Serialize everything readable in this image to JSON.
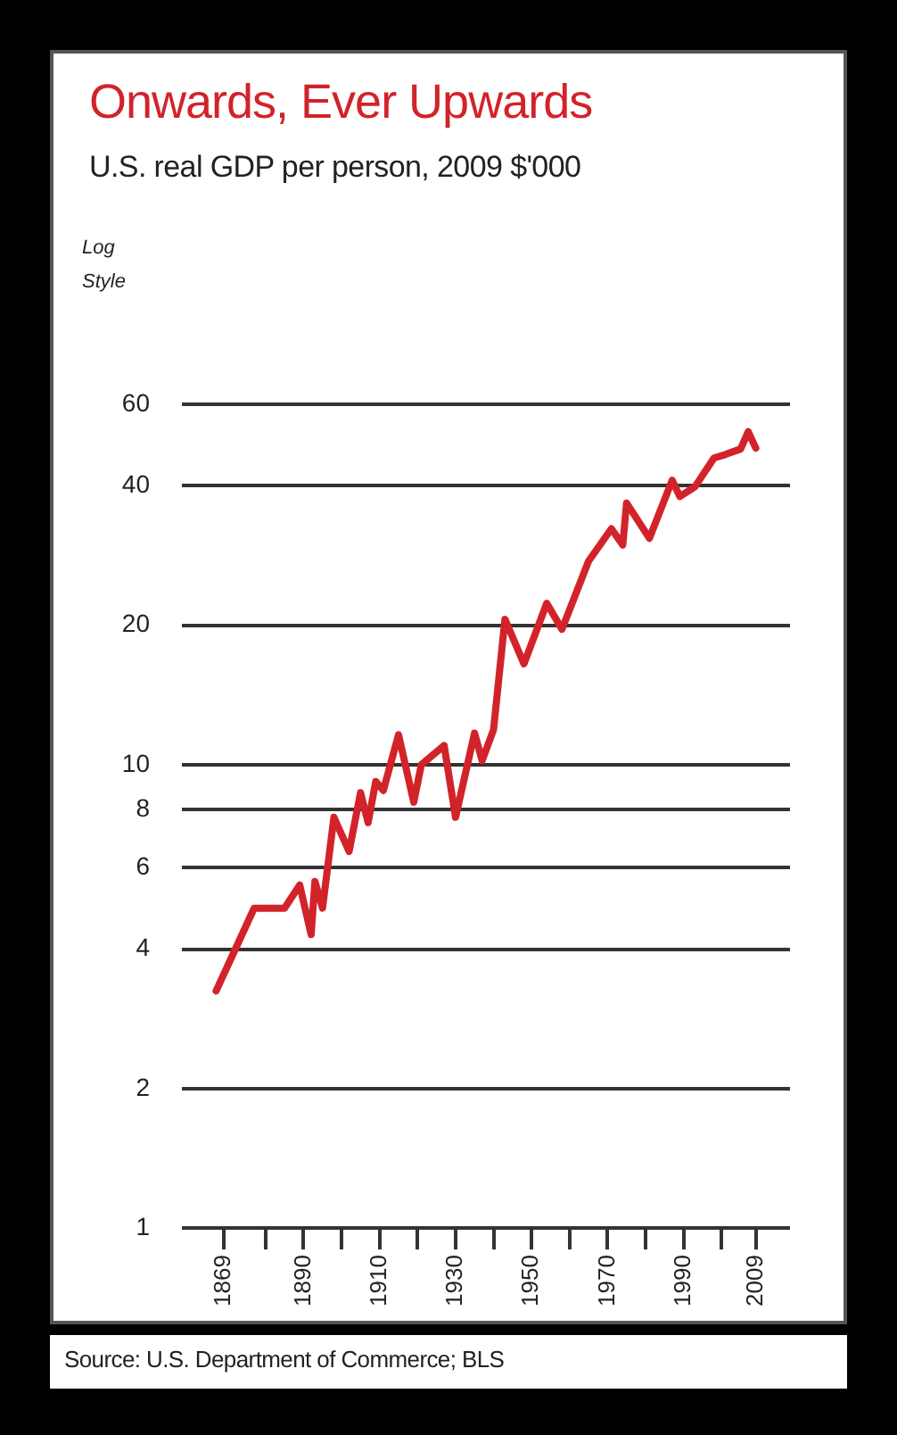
{
  "chart_data": {
    "type": "line",
    "title": "Onwards, Ever Upwards",
    "subtitle": "U.S. real GDP per person, 2009 $'000",
    "ylabel": "Log Style",
    "annotations": [
      "Source: U.S. Department of Commerce; BLS"
    ],
    "log": "y",
    "grid": "y",
    "legend": false,
    "marker": "none",
    "line_style": "solid",
    "xlim": [
      1858,
      2018
    ],
    "xticks": [
      1869,
      {
        "value": 1880,
        "label": null
      },
      1890,
      {
        "value": 1900,
        "label": null
      },
      1910,
      {
        "value": 1920,
        "label": null
      },
      1930,
      {
        "value": 1940,
        "label": null
      },
      1950,
      {
        "value": 1960,
        "label": null
      },
      1970,
      {
        "value": 1980,
        "label": null
      },
      1990,
      {
        "value": 2000,
        "label": null
      },
      2009
    ],
    "ylim": [
      1,
      60
    ],
    "yticks": [
      1,
      2,
      4,
      6,
      8,
      10,
      20,
      40,
      60
    ],
    "series": [
      {
        "color": "#d2232a",
        "x": [
          1867,
          1877,
          1885,
          1889,
          1892,
          1893,
          1895,
          1898,
          1902,
          1905,
          1907,
          1909,
          1911,
          1915,
          1919,
          1921,
          1927,
          1930,
          1935,
          1937,
          1940,
          1943,
          1948,
          1954,
          1958,
          1965,
          1971,
          1974,
          1975,
          1981,
          1987,
          1989,
          1993,
          1998,
          2001,
          2005,
          2007,
          2009
        ],
        "values": [
          3.25,
          4.9,
          4.9,
          5.5,
          4.3,
          5.6,
          4.9,
          7.7,
          6.5,
          8.7,
          7.5,
          9.2,
          8.8,
          11.6,
          8.3,
          10,
          11,
          7.7,
          11.7,
          10.2,
          11.9,
          20.6,
          16.5,
          22.3,
          19.6,
          27.5,
          32.3,
          29.8,
          36.7,
          30.8,
          41.1,
          37.9,
          39.8,
          45.9,
          46.7,
          48,
          52.3,
          48.2
        ]
      }
    ]
  }
}
